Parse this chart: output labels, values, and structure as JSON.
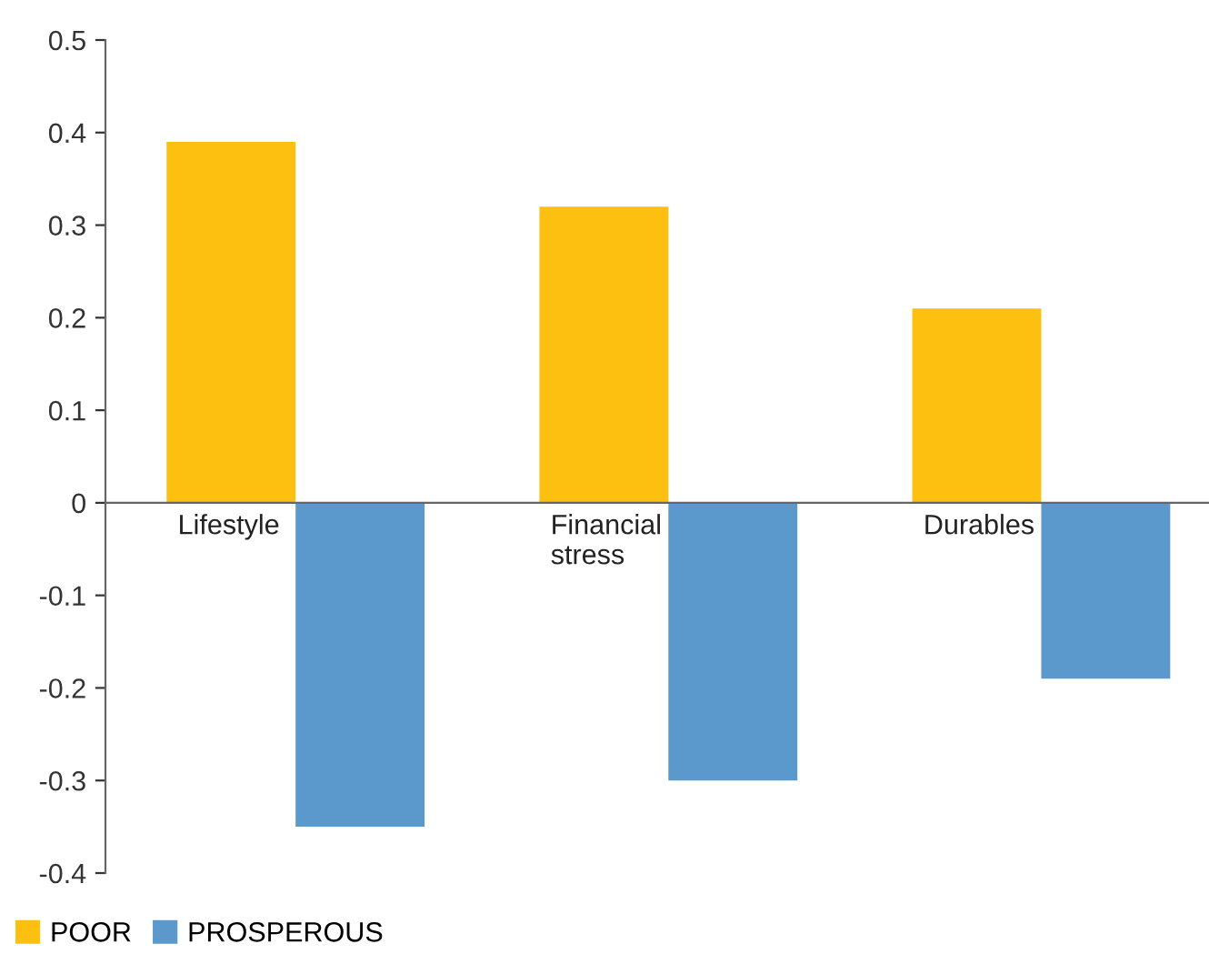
{
  "chart_data": {
    "type": "bar",
    "categories": [
      "Lifestyle",
      "Financial\nstress",
      "Durables"
    ],
    "series": [
      {
        "name": "POOR",
        "color": "#fdc010",
        "values": [
          0.39,
          0.32,
          0.21
        ]
      },
      {
        "name": "PROSPEROUS",
        "color": "#5b98cb",
        "values": [
          -0.35,
          -0.3,
          -0.19
        ]
      }
    ],
    "ylim": [
      -0.4,
      0.5
    ],
    "yticks": [
      -0.4,
      -0.3,
      -0.2,
      -0.1,
      0,
      0.1,
      0.2,
      0.3,
      0.4,
      0.5
    ],
    "grid": false,
    "legend": "bottom left"
  }
}
